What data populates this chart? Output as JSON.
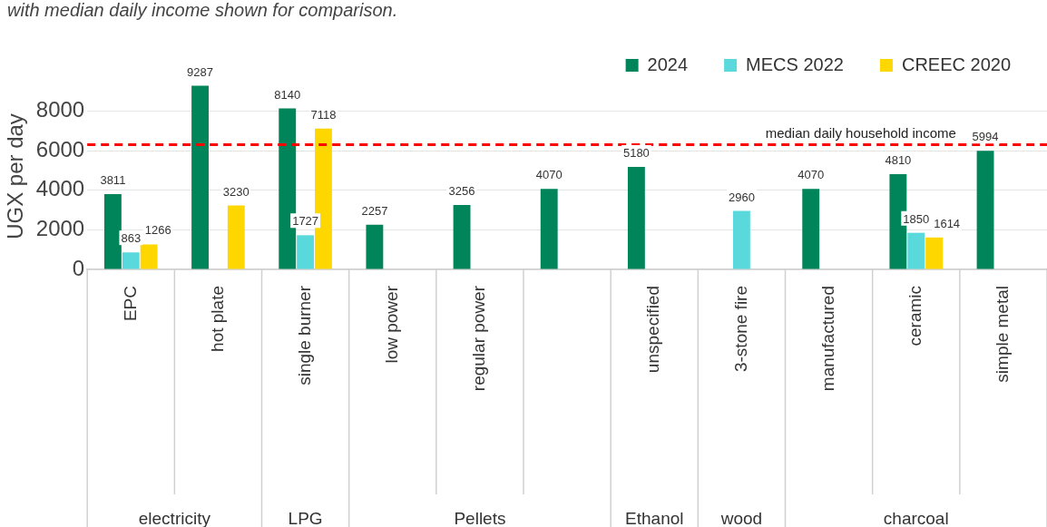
{
  "chart_data": {
    "type": "bar",
    "title": "with median daily income shown for comparison.",
    "ylabel": "UGX per day",
    "categories": [
      "EPC",
      "hot plate",
      "single burner",
      "low power",
      "regular power",
      null,
      "unspecified",
      "3-stone fire",
      "manufactured",
      "ceramic",
      "simple metal"
    ],
    "series": [
      {
        "name": "2024",
        "color": "#00845a",
        "values": [
          3811,
          9287,
          8140,
          2257,
          3256,
          4070,
          5180,
          null,
          4070,
          4810,
          5994
        ]
      },
      {
        "name": "MECS 2022",
        "color": "#5ad9dc",
        "values": [
          863,
          null,
          1727,
          null,
          null,
          null,
          null,
          2960,
          null,
          1850,
          null
        ]
      },
      {
        "name": "CREEC 2020",
        "color": "#ffd700",
        "values": [
          1266,
          3230,
          7118,
          null,
          null,
          null,
          null,
          null,
          null,
          1614,
          null
        ]
      }
    ],
    "annotations": [
      "electricity",
      "LPG",
      "Pellets",
      "Ethanol",
      "wood",
      "charcoal"
    ],
    "ref_lines": [
      {
        "axis": "y",
        "value": 6300,
        "label": "median daily household income",
        "color": "#ff0000",
        "line_style": "dashed"
      }
    ],
    "ylim": [
      0,
      9400
    ],
    "yticks": [
      0,
      2000,
      4000,
      6000,
      8000
    ],
    "grid": "y",
    "legend": "top right",
    "data_labels": true
  }
}
